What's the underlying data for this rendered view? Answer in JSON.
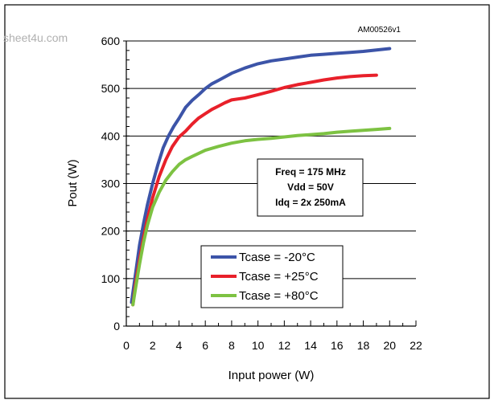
{
  "watermark": "sheet4u.com",
  "figure_id": "AM00526v1",
  "chart_data": {
    "type": "line",
    "xlabel": "Input power (W)",
    "ylabel": "Pout (W)",
    "xlim": [
      0,
      22
    ],
    "ylim": [
      0,
      600
    ],
    "xticks": [
      0,
      2,
      4,
      6,
      8,
      10,
      12,
      14,
      16,
      18,
      20,
      22
    ],
    "yticks": [
      0,
      100,
      200,
      300,
      400,
      500,
      600
    ],
    "x_minor_step": 1,
    "y_minor_step": 20,
    "grid": "horizontal-major",
    "annotation": [
      "Freq = 175 MHz",
      "Vdd = 50V",
      "Idq = 2x 250mA"
    ],
    "legend_position": "lower-center",
    "series": [
      {
        "name": "Tcase = -20°C",
        "color": "#3c54a8",
        "x": [
          0.4,
          0.6,
          0.8,
          1.0,
          1.3,
          1.6,
          2.0,
          2.4,
          2.8,
          3.2,
          3.6,
          4.0,
          4.5,
          5.0,
          5.5,
          6.0,
          6.5,
          7.0,
          8.0,
          9.0,
          10.0,
          11.0,
          12.0,
          13.0,
          14.0,
          15.0,
          16.0,
          17.0,
          18.0,
          19.0,
          20.0
        ],
        "y": [
          50,
          90,
          130,
          170,
          215,
          255,
          300,
          340,
          375,
          400,
          420,
          437,
          460,
          475,
          487,
          500,
          510,
          517,
          532,
          543,
          552,
          558,
          562,
          566,
          570,
          572,
          574,
          576,
          578,
          581,
          584
        ]
      },
      {
        "name": "Tcase = +25°C",
        "color": "#e8202a",
        "x": [
          0.5,
          0.7,
          1.0,
          1.3,
          1.6,
          2.0,
          2.5,
          3.0,
          3.5,
          4.0,
          4.5,
          5.0,
          5.5,
          6.0,
          6.5,
          7.0,
          7.5,
          8.0,
          9.0,
          10.0,
          11.0,
          12.0,
          13.0,
          14.0,
          15.0,
          16.0,
          17.0,
          18.0,
          19.0
        ],
        "y": [
          45,
          90,
          140,
          185,
          225,
          270,
          315,
          350,
          378,
          398,
          410,
          425,
          438,
          447,
          456,
          463,
          470,
          476,
          480,
          487,
          494,
          502,
          508,
          513,
          518,
          522,
          525,
          527,
          528
        ]
      },
      {
        "name": "Tcase = +80°C",
        "color": "#7dc242",
        "x": [
          0.5,
          0.7,
          1.0,
          1.3,
          1.6,
          2.0,
          2.5,
          3.0,
          3.5,
          4.0,
          4.5,
          5.0,
          6.0,
          7.0,
          8.0,
          9.0,
          10.0,
          11.0,
          12.0,
          13.0,
          14.0,
          15.0,
          16.0,
          17.0,
          18.0,
          19.0,
          20.0
        ],
        "y": [
          45,
          80,
          130,
          175,
          212,
          250,
          282,
          307,
          325,
          340,
          350,
          357,
          370,
          378,
          385,
          390,
          393,
          395,
          398,
          401,
          403,
          405,
          408,
          410,
          412,
          414,
          416
        ]
      }
    ]
  }
}
